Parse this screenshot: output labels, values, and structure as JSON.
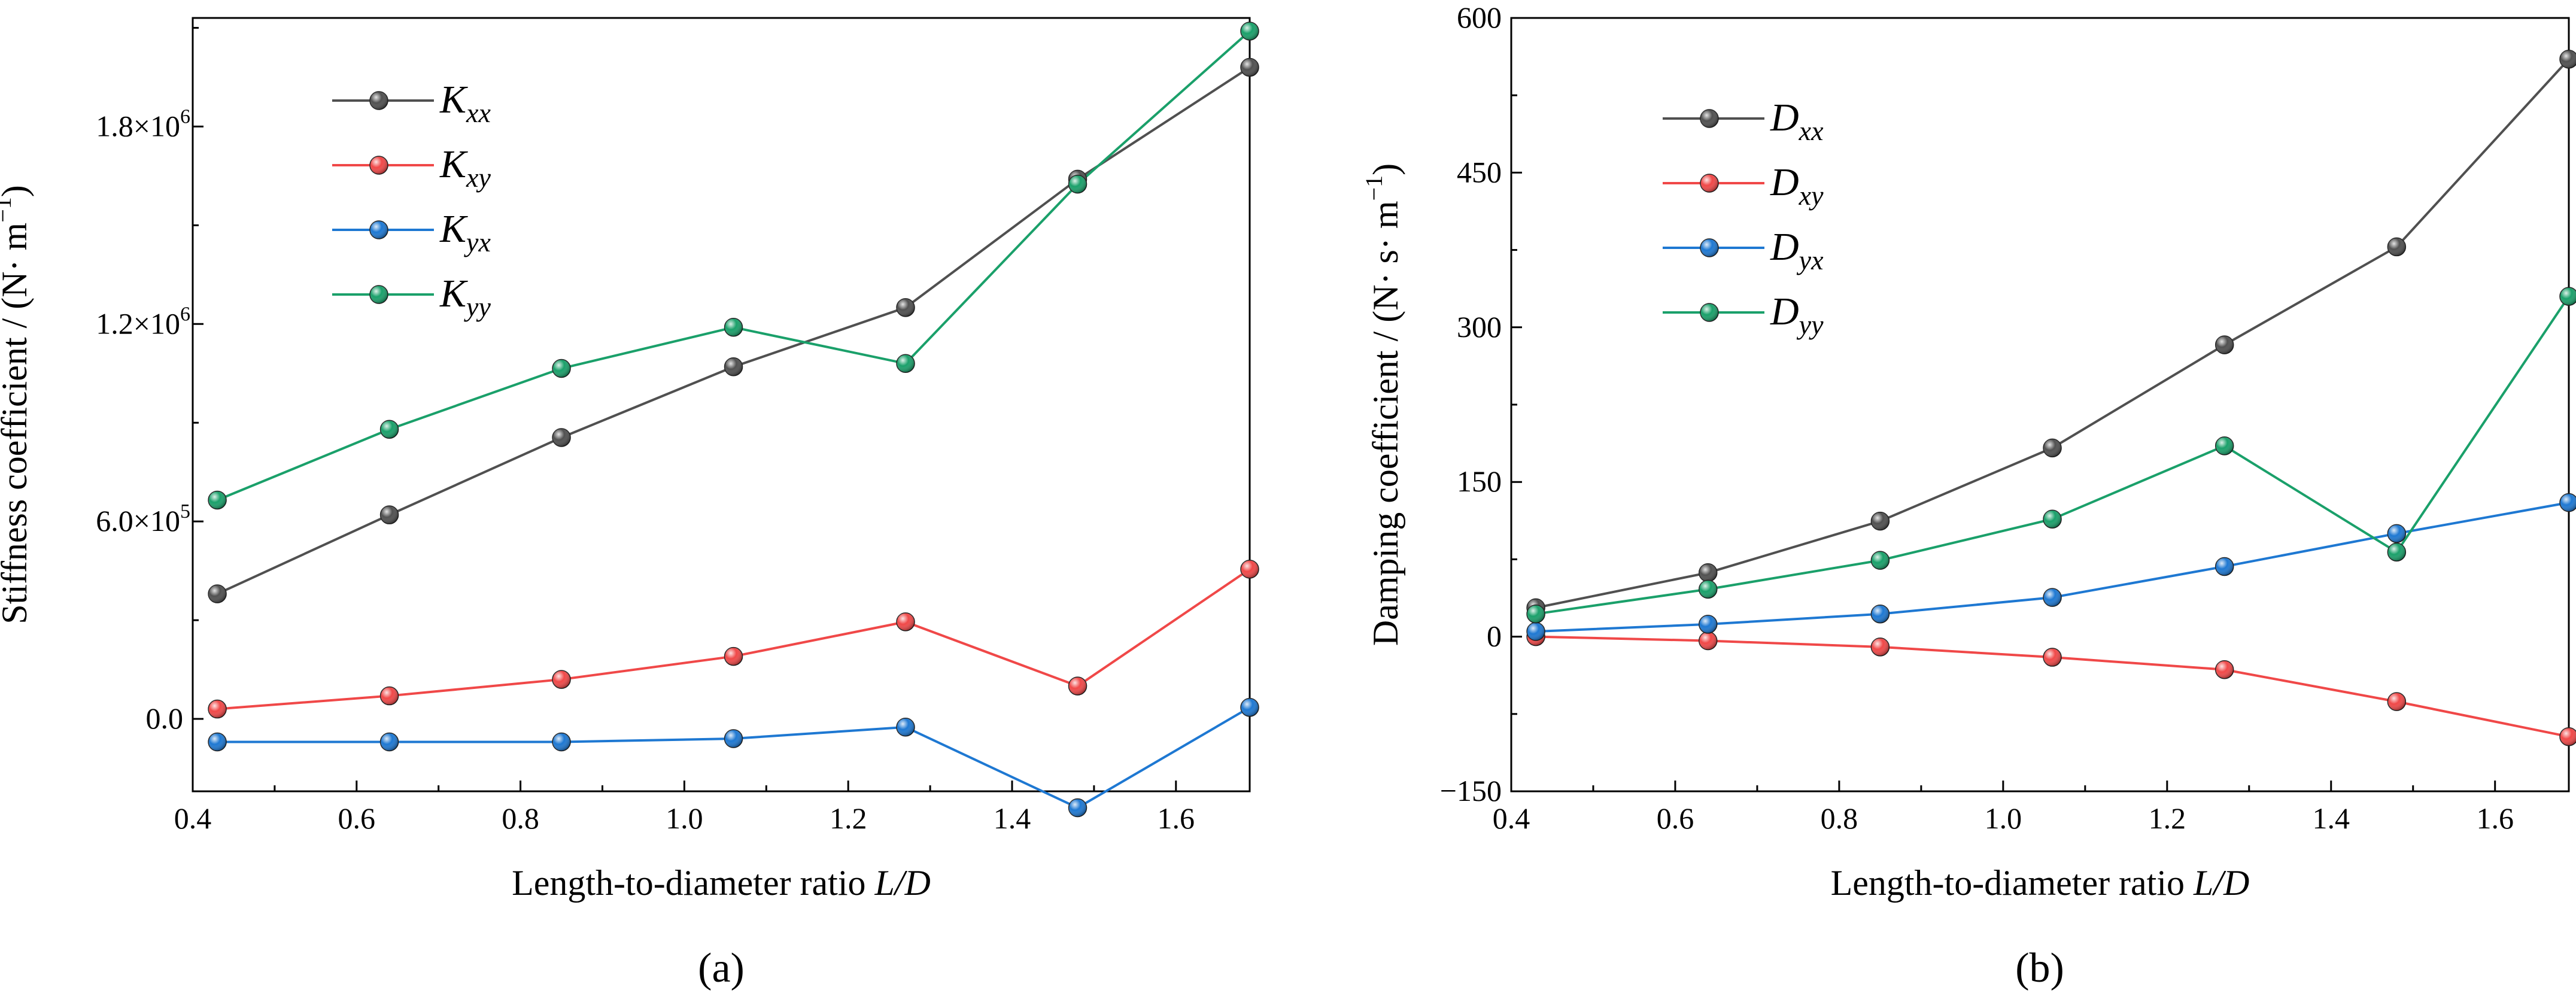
{
  "figure": {
    "panel_labels": [
      "(a)",
      "(b)"
    ]
  },
  "chart_data": [
    {
      "type": "line",
      "panel": "(a)",
      "xlabel": "Length-to-diameter ratio ",
      "xlabel_var": "L/D",
      "ylabel_main": "Stiffness coefficient / (N· m",
      "ylabel_exp": "−1",
      "ylabel_close": ")",
      "xlim": [
        0.4,
        1.69
      ],
      "ylim": [
        -220000,
        2130000
      ],
      "x_ticks": [
        0.4,
        0.6,
        0.8,
        1.0,
        1.2,
        1.4,
        1.6
      ],
      "x_tick_labels": [
        "0.4",
        "0.6",
        "0.8",
        "1.0",
        "1.2",
        "1.4",
        "1.6"
      ],
      "y_ticks": [
        0,
        600000,
        1200000,
        1800000
      ],
      "y_tick_labels": [
        {
          "mant": "0.0",
          "exp": ""
        },
        {
          "mant": "6.0×10",
          "exp": "5"
        },
        {
          "mant": "1.2×10",
          "exp": "6"
        },
        {
          "mant": "1.8×10",
          "exp": "6"
        }
      ],
      "legend_position": "top-left",
      "x": [
        0.43,
        0.64,
        0.85,
        1.06,
        1.27,
        1.48,
        1.69
      ],
      "series": [
        {
          "name": "K",
          "sub": "xx",
          "color": "#505050",
          "values": [
            380000,
            620000,
            855000,
            1070000,
            1250000,
            1640000,
            1980000
          ]
        },
        {
          "name": "K",
          "sub": "xy",
          "color": "#f04848",
          "values": [
            30000,
            70000,
            120000,
            190000,
            295000,
            100000,
            455000
          ]
        },
        {
          "name": "K",
          "sub": "yx",
          "color": "#1e78d2",
          "values": [
            -70000,
            -70000,
            -70000,
            -60000,
            -25000,
            -270000,
            35000
          ]
        },
        {
          "name": "K",
          "sub": "yy",
          "color": "#1aa06a",
          "values": [
            665000,
            880000,
            1065000,
            1190000,
            1080000,
            1625000,
            2090000
          ]
        }
      ]
    },
    {
      "type": "line",
      "panel": "(b)",
      "xlabel": "Length-to-diameter ratio ",
      "xlabel_var": "L/D",
      "ylabel_main": "Damping coefficient / (N· s· m",
      "ylabel_exp": "−1",
      "ylabel_close": ")",
      "xlim": [
        0.4,
        1.69
      ],
      "ylim": [
        -150,
        600
      ],
      "x_ticks": [
        0.4,
        0.6,
        0.8,
        1.0,
        1.2,
        1.4,
        1.6
      ],
      "x_tick_labels": [
        "0.4",
        "0.6",
        "0.8",
        "1.0",
        "1.2",
        "1.4",
        "1.6"
      ],
      "y_ticks": [
        -150,
        0,
        150,
        300,
        450,
        600
      ],
      "y_tick_labels": [
        {
          "mant": "−150",
          "exp": ""
        },
        {
          "mant": "0",
          "exp": ""
        },
        {
          "mant": "150",
          "exp": ""
        },
        {
          "mant": "300",
          "exp": ""
        },
        {
          "mant": "450",
          "exp": ""
        },
        {
          "mant": "600",
          "exp": ""
        }
      ],
      "legend_position": "top-left",
      "x": [
        0.43,
        0.64,
        0.85,
        1.06,
        1.27,
        1.48,
        1.69
      ],
      "series": [
        {
          "name": "D",
          "sub": "xx",
          "color": "#505050",
          "values": [
            28,
            62,
            112,
            183,
            283,
            378,
            560
          ]
        },
        {
          "name": "D",
          "sub": "xy",
          "color": "#f04848",
          "values": [
            0,
            -4,
            -10,
            -20,
            -32,
            -63,
            -97
          ]
        },
        {
          "name": "D",
          "sub": "yx",
          "color": "#1e78d2",
          "values": [
            5,
            12,
            22,
            38,
            68,
            100,
            130
          ]
        },
        {
          "name": "D",
          "sub": "yy",
          "color": "#1aa06a",
          "values": [
            22,
            46,
            74,
            114,
            185,
            82,
            330
          ]
        }
      ]
    }
  ]
}
